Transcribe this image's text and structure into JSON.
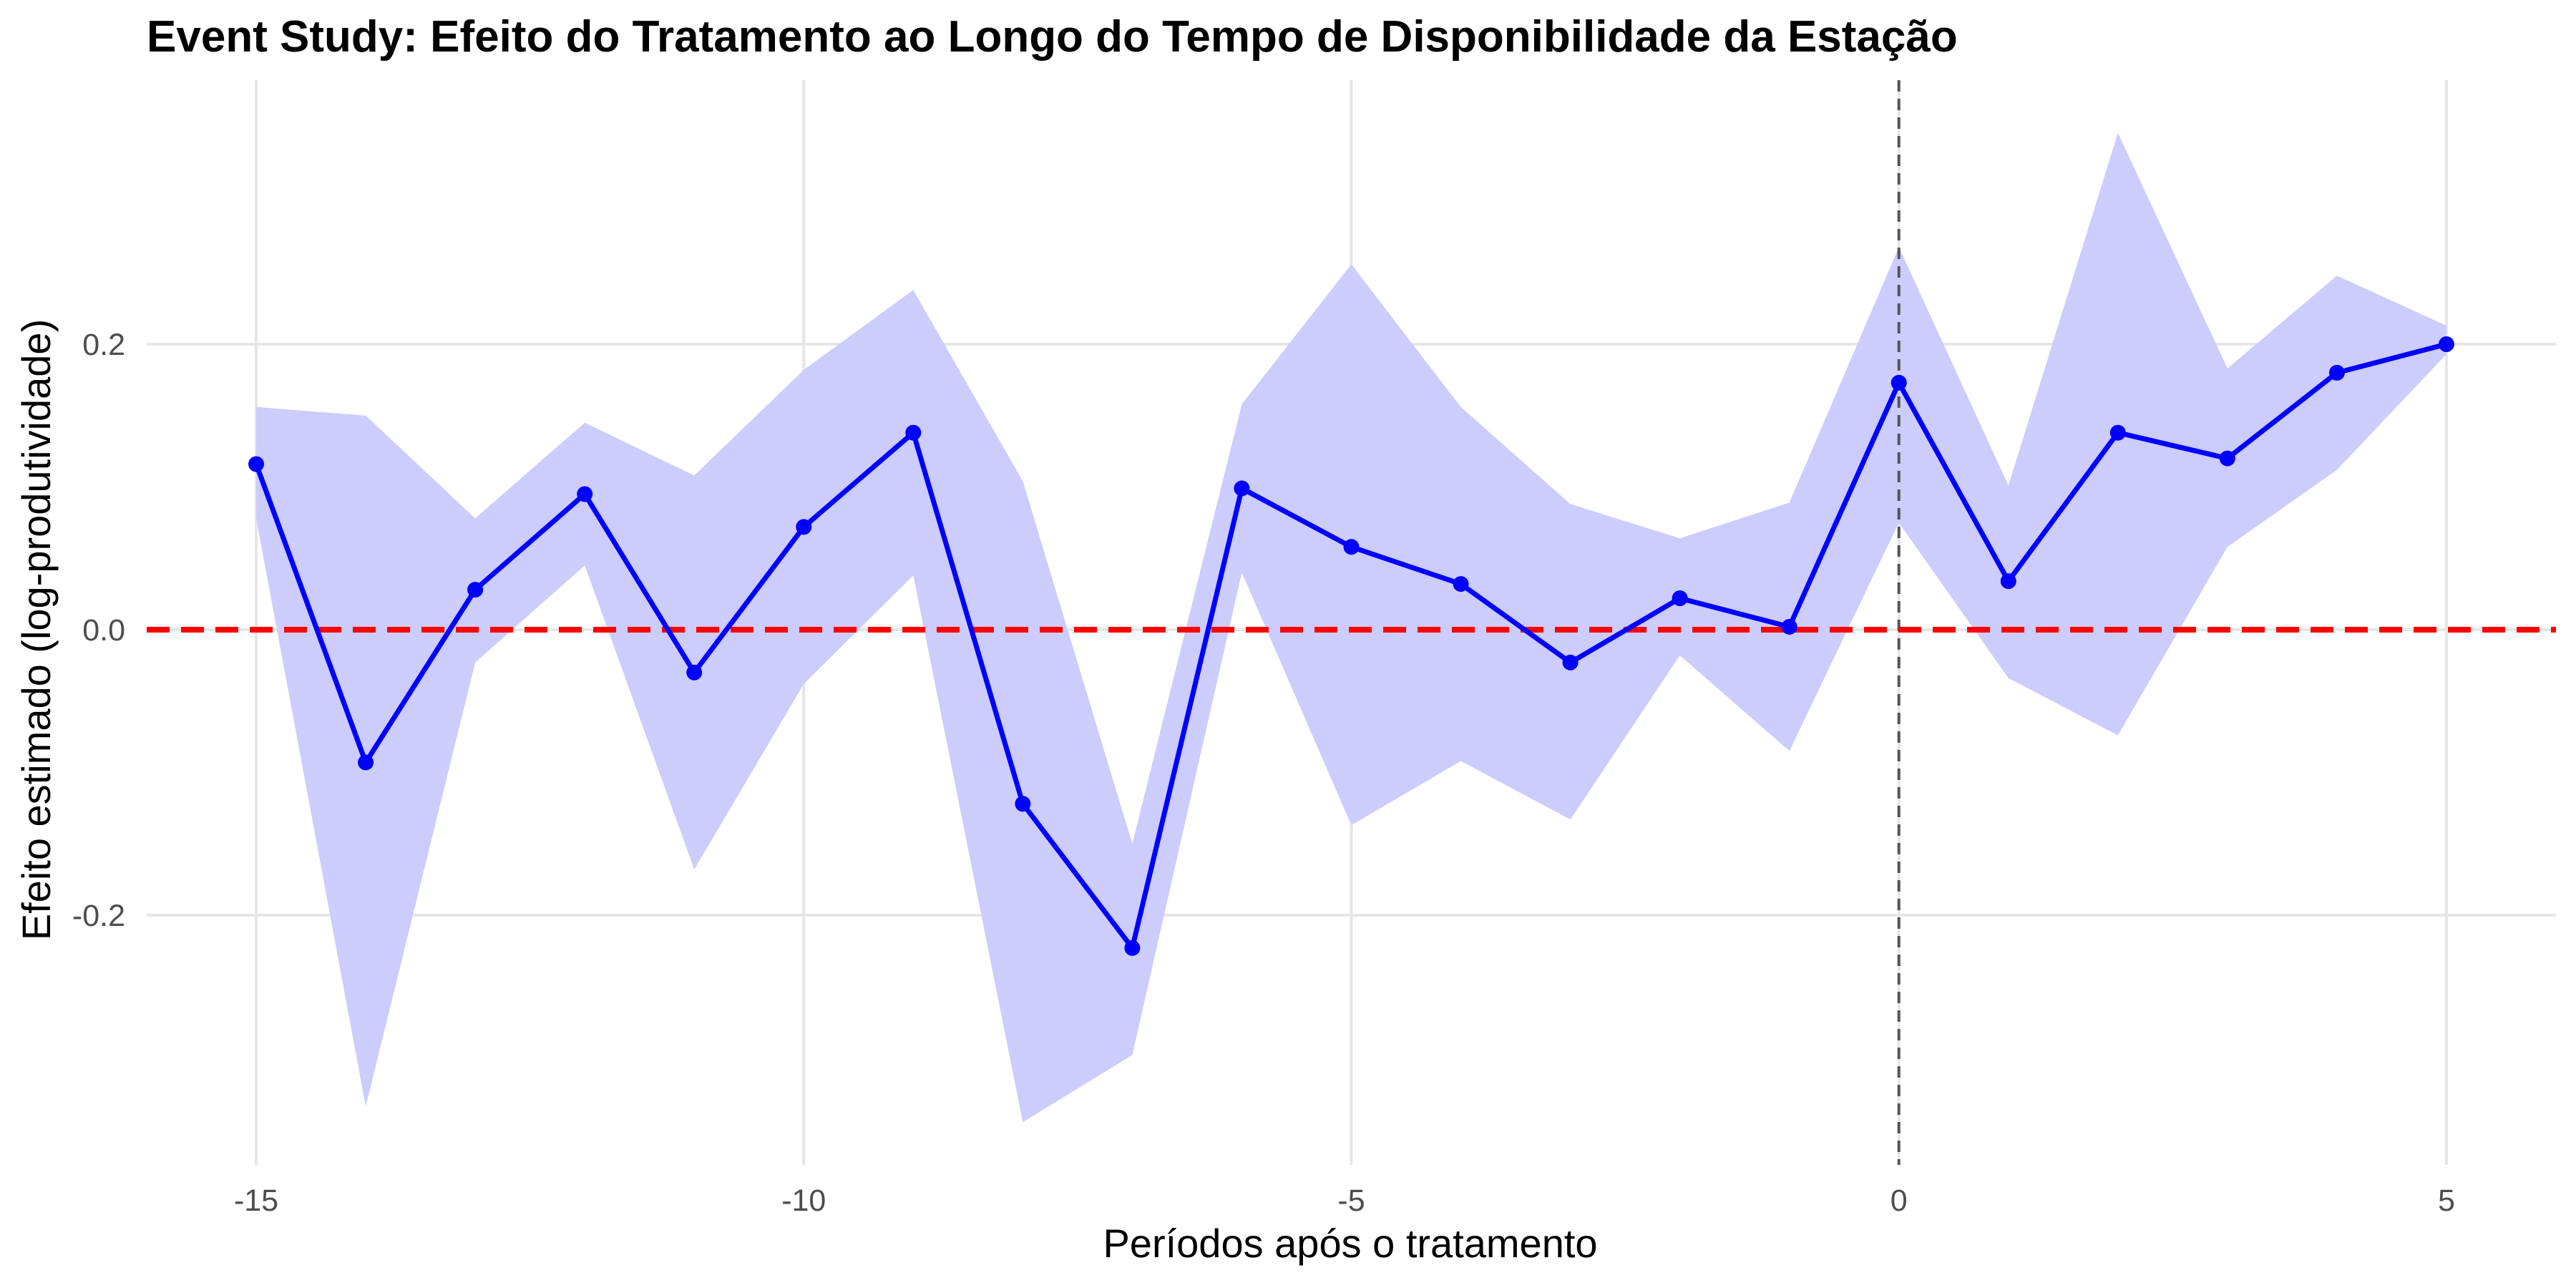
{
  "chart_data": {
    "type": "line",
    "title": "Event Study: Efeito do Tratamento ao Longo do Tempo de Disponibilidade da Estação",
    "xlabel": "Períodos após o tratamento",
    "ylabel": "Efeito estimado (log-produtividade)",
    "x_ticks": [
      -15,
      -10,
      -5,
      0,
      5
    ],
    "x_tick_labels": [
      "-15",
      "-10",
      "-5",
      "0",
      "5"
    ],
    "y_ticks": [
      -0.2,
      0.0,
      0.2
    ],
    "y_tick_labels": [
      "-0.2",
      "0.0",
      "0.2"
    ],
    "xlim": [
      -16.0,
      6.0
    ],
    "ylim": [
      -0.375,
      0.385
    ],
    "grid": true,
    "series": [
      {
        "x": [
          -15,
          -14,
          -13,
          -12,
          -11,
          -10,
          -9,
          -8,
          -7,
          -6,
          -5,
          -4,
          -3,
          -2,
          -1,
          0,
          1,
          2,
          3,
          4,
          5
        ],
        "values": [
          0.116,
          -0.093,
          0.028,
          0.095,
          -0.03,
          0.072,
          0.138,
          -0.122,
          -0.223,
          0.099,
          0.058,
          0.032,
          -0.023,
          0.022,
          0.002,
          0.173,
          0.034,
          0.138,
          0.12,
          0.18,
          0.2
        ],
        "ci_lower": [
          0.078,
          -0.334,
          -0.023,
          0.045,
          -0.168,
          -0.038,
          0.038,
          -0.345,
          -0.298,
          0.04,
          -0.137,
          -0.092,
          -0.133,
          -0.018,
          -0.085,
          0.075,
          -0.034,
          -0.074,
          0.058,
          0.112,
          0.193
        ],
        "ci_upper": [
          0.156,
          0.15,
          0.078,
          0.145,
          0.108,
          0.182,
          0.238,
          0.104,
          -0.15,
          0.158,
          0.256,
          0.156,
          0.088,
          0.064,
          0.089,
          0.268,
          0.101,
          0.348,
          0.183,
          0.248,
          0.213
        ]
      }
    ],
    "reference_lines": {
      "horizontal_y": 0,
      "vertical_x": 0
    },
    "colors": {
      "line": "#0000ff",
      "ribbon": "#ccccfd",
      "zero_line": "#ff0000",
      "vertical_line": "#555555",
      "grid": "#e6e6e6"
    }
  }
}
